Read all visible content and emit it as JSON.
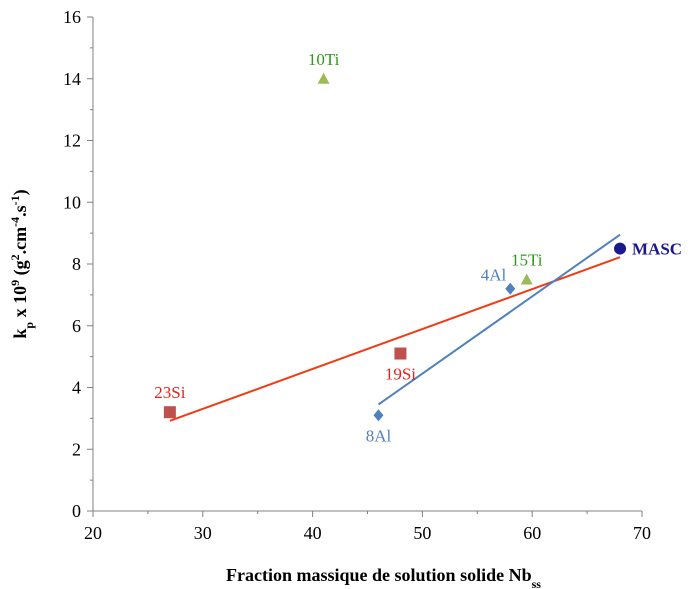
{
  "chart_data": {
    "type": "scatter",
    "xlabel": "Fraction massique de solution solide Nb",
    "xlabel_sub": "ss",
    "ylabel_parts": [
      "k",
      "p",
      " x 10",
      "9",
      " (g",
      "2",
      ".cm",
      "-4",
      ".s",
      "-1",
      ")"
    ],
    "xlim": [
      20,
      70
    ],
    "ylim": [
      0,
      16
    ],
    "xticks": [
      20,
      30,
      40,
      50,
      60,
      70
    ],
    "yticks": [
      0,
      2,
      4,
      6,
      8,
      10,
      12,
      14,
      16
    ],
    "grid": false,
    "legend": "none",
    "series": [
      {
        "marker": "square",
        "color": "#c0504d",
        "label_color": "#e8201c",
        "points": [
          {
            "x": 27,
            "y": 3.2,
            "label": "23Si",
            "label_pos": "above"
          },
          {
            "x": 48,
            "y": 5.1,
            "label": "19Si",
            "label_pos": "below"
          }
        ],
        "trendline": {
          "x": [
            27,
            68
          ],
          "y": [
            2.92,
            8.22
          ],
          "color": "#f03c14"
        }
      },
      {
        "marker": "diamond",
        "color": "#4f81bd",
        "label_color": "#4f81bd",
        "points": [
          {
            "x": 46,
            "y": 3.1,
            "label": "8Al",
            "label_pos": "below"
          },
          {
            "x": 58,
            "y": 7.2,
            "label": "4Al",
            "label_pos": "left"
          }
        ],
        "trendline": {
          "x": [
            46,
            68
          ],
          "y": [
            3.45,
            8.95
          ],
          "color": "#4f81bd"
        }
      },
      {
        "marker": "triangle",
        "color": "#9bbb59",
        "label_color": "#2e9a1a",
        "points": [
          {
            "x": 41,
            "y": 14.0,
            "label": "10Ti",
            "label_pos": "above"
          },
          {
            "x": 59.5,
            "y": 7.5,
            "label": "15Ti",
            "label_pos": "above"
          }
        ]
      },
      {
        "marker": "circle",
        "color": "#1a1a8c",
        "label_color": "#1a1a8c",
        "label_bold": true,
        "points": [
          {
            "x": 68,
            "y": 8.5,
            "label": "MASC",
            "label_pos": "right"
          }
        ]
      }
    ]
  }
}
